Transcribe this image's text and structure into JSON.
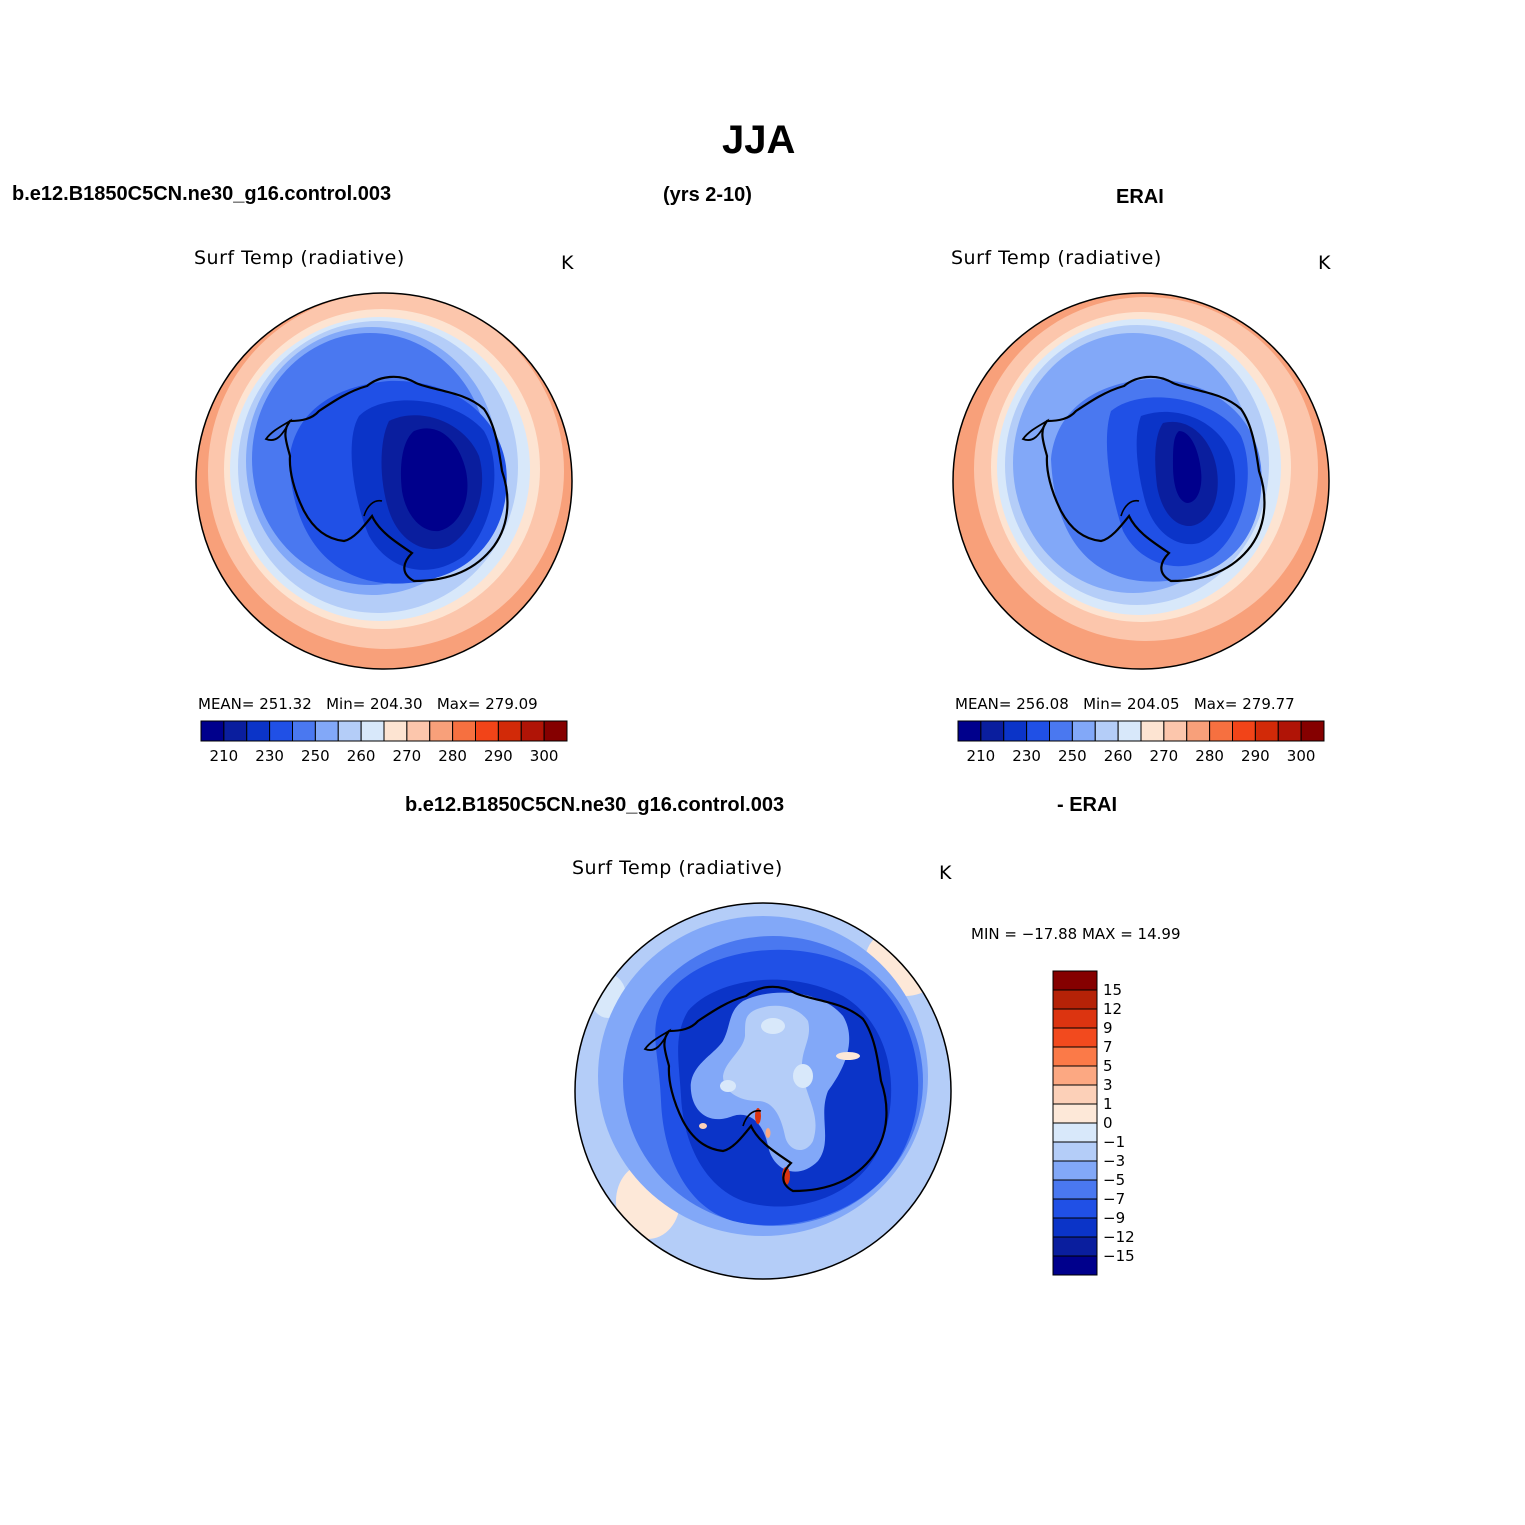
{
  "title": "JJA",
  "top_left_header": "b.e12.B1850C5CN.ne30_g16.control.003",
  "top_center_header": "(yrs 2-10)",
  "top_right_header": "ERAI",
  "panels": [
    {
      "name": "model",
      "subtitle": "Surf Temp (radiative)",
      "units": "K",
      "mean_label": "MEAN=",
      "mean": "251.32",
      "min_label": "Min=",
      "min": "204.30",
      "max_label": "Max=",
      "max": "279.09"
    },
    {
      "name": "obs",
      "subtitle": "Surf Temp (radiative)",
      "units": "K",
      "mean_label": "MEAN=",
      "mean": "256.08",
      "min_label": "Min=",
      "min": "204.05",
      "max_label": "Max=",
      "max": "279.77"
    }
  ],
  "diff": {
    "header_left": "b.e12.B1850C5CN.ne30_g16.control.003",
    "header_right": "- ERAI",
    "subtitle": "Surf Temp (radiative)",
    "units": "K",
    "minmax_text": "MIN = −17.88 MAX =   14.99"
  },
  "colorbar_abs": {
    "colors": [
      "#00008c",
      "#0a1e9e",
      "#0b34c8",
      "#2050e6",
      "#4a78f0",
      "#82a8f8",
      "#b4cdf8",
      "#d8e8fa",
      "#fde4d2",
      "#fcc6ac",
      "#f8a07a",
      "#f67040",
      "#f24418",
      "#d22a08",
      "#b01406",
      "#850000"
    ],
    "tick_labels": [
      "210",
      "230",
      "250",
      "260",
      "270",
      "280",
      "290",
      "300"
    ]
  },
  "colorbar_diff": {
    "colors_top_to_bottom": [
      "#850000",
      "#b52207",
      "#dc3410",
      "#f24a1e",
      "#fb7a48",
      "#fca882",
      "#fcd0b8",
      "#fde8d8",
      "#d8e8fa",
      "#b4cdf8",
      "#82a8f8",
      "#4a78f0",
      "#2050e6",
      "#0b34c8",
      "#0a1e9e",
      "#00008c"
    ],
    "tick_labels": [
      "15",
      "12",
      "9",
      "7",
      "5",
      "3",
      "1",
      "0",
      "−1",
      "−3",
      "−5",
      "−7",
      "−9",
      "−12",
      "−15"
    ]
  },
  "chart_data": {
    "type": "heatmap",
    "title": "JJA",
    "projection": "south polar stereographic",
    "variable": "Surf Temp (radiative)",
    "units": "K",
    "panels": [
      {
        "label": "b.e12.B1850C5CN.ne30_g16.control.003 (yrs 2-10)",
        "mean": 251.32,
        "min": 204.3,
        "max": 279.09
      },
      {
        "label": "ERAI",
        "mean": 256.08,
        "min": 204.05,
        "max": 279.77
      },
      {
        "label": "b.e12.B1850C5CN.ne30_g16.control.003 - ERAI",
        "min": -17.88,
        "max": 14.99
      }
    ],
    "abs_levels": [
      210,
      230,
      250,
      260,
      270,
      280,
      290,
      300
    ],
    "diff_levels": [
      -15,
      -12,
      -9,
      -7,
      -5,
      -3,
      -1,
      0,
      1,
      3,
      5,
      7,
      9,
      12,
      15
    ]
  }
}
